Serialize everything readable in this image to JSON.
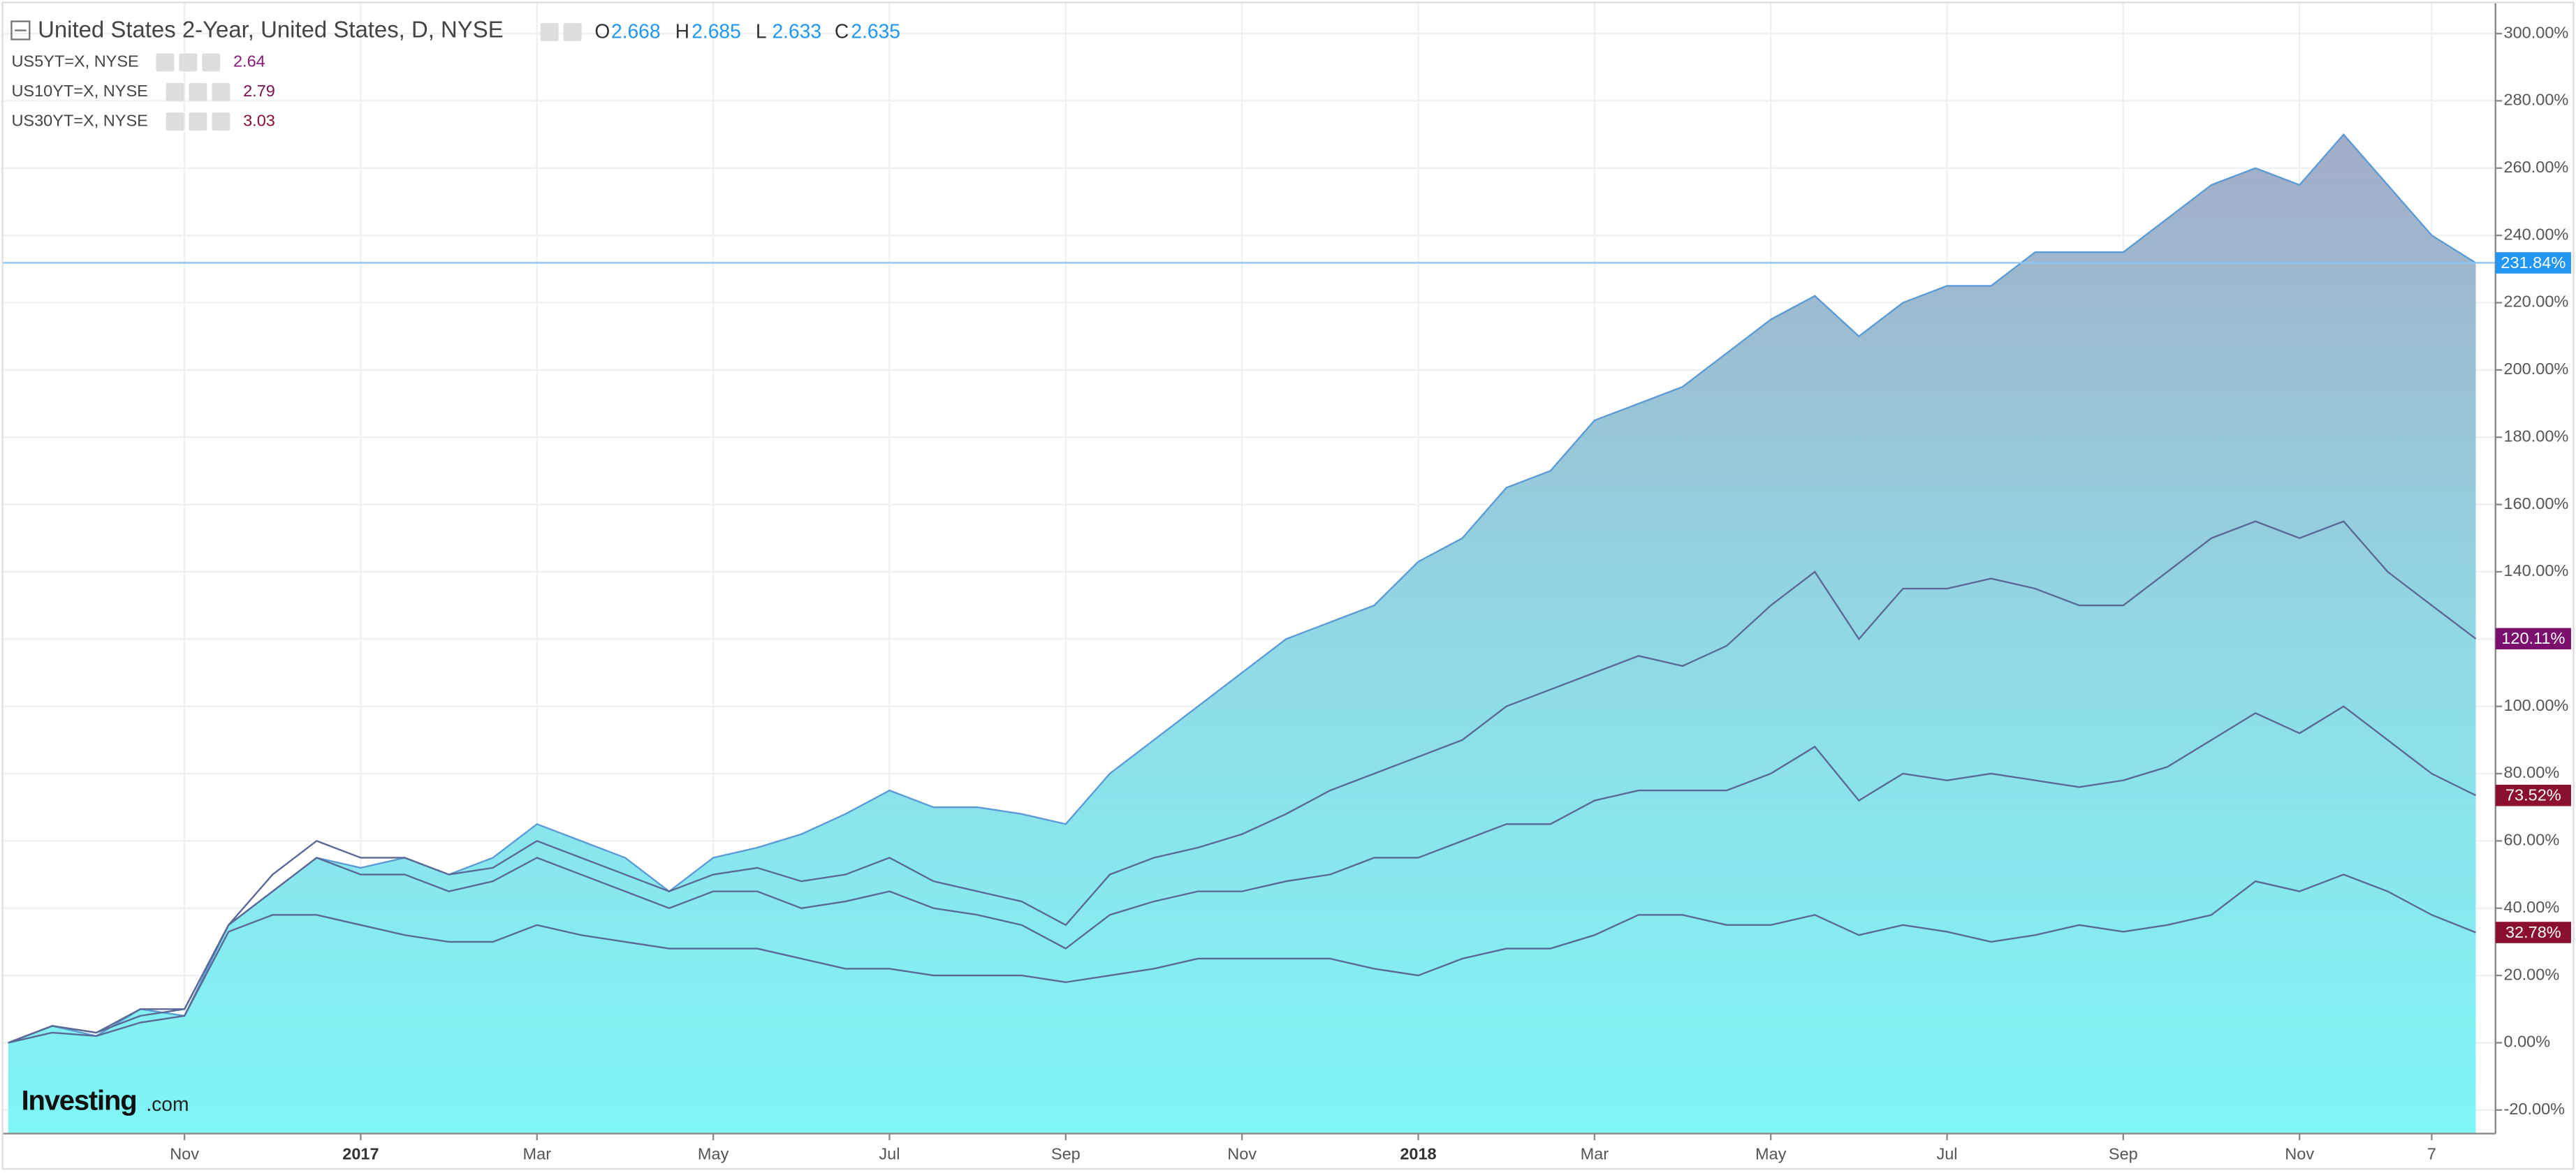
{
  "chart_data": {
    "type": "line",
    "title": "United States 2-Year, United States, D, NYSE",
    "ohlc": [
      {
        "label": "O",
        "value": 2.668
      },
      {
        "label": "H",
        "value": 2.685
      },
      {
        "label": "L",
        "value": 2.633
      },
      {
        "label": "C",
        "value": 2.635
      }
    ],
    "watermark": [
      "Investing",
      ".com"
    ],
    "categories": [
      null,
      null,
      null,
      null,
      "Nov",
      null,
      null,
      null,
      "2017",
      null,
      null,
      null,
      "Mar",
      null,
      null,
      null,
      "May",
      null,
      null,
      null,
      "Jul",
      null,
      null,
      null,
      "Sep",
      null,
      null,
      null,
      "Nov",
      null,
      null,
      null,
      "2018",
      null,
      null,
      null,
      "Mar",
      null,
      null,
      null,
      "May",
      null,
      null,
      null,
      "Jul",
      null,
      null,
      null,
      "Sep",
      null,
      null,
      null,
      "Nov",
      null,
      null,
      "7",
      null
    ],
    "ylim": [
      -27,
      309
    ],
    "yticks": [
      {
        "value": -20,
        "label": "-20.00%"
      },
      {
        "value": 0,
        "label": "0.00%"
      },
      {
        "value": 20,
        "label": "20.00%"
      },
      {
        "value": 40,
        "label": "40.00%"
      },
      {
        "value": 60,
        "label": "60.00%"
      },
      {
        "value": 80,
        "label": "80.00%"
      },
      {
        "value": 100,
        "label": "100.00%"
      },
      {
        "value": 120,
        "label": "120.00%"
      },
      {
        "value": 140,
        "label": "140.00%"
      },
      {
        "value": 160,
        "label": "160.00%"
      },
      {
        "value": 180,
        "label": "180.00%"
      },
      {
        "value": 200,
        "label": "200.00%"
      },
      {
        "value": 220,
        "label": "220.00%"
      },
      {
        "value": 240,
        "label": "240.00%"
      },
      {
        "value": 260,
        "label": "260.00%"
      },
      {
        "value": 280,
        "label": "280.00%"
      },
      {
        "value": 300,
        "label": "300.00%"
      }
    ],
    "grid": true,
    "series": [
      {
        "area": true,
        "color": "#5b9bd5",
        "last_label": {
          "value": 231.84,
          "label": "231.84%",
          "color": "#2196f3"
        },
        "values": [
          0,
          5,
          2,
          10,
          8,
          35,
          45,
          55,
          52,
          55,
          50,
          55,
          65,
          60,
          55,
          45,
          55,
          58,
          62,
          68,
          75,
          70,
          70,
          68,
          65,
          80,
          90,
          100,
          110,
          120,
          125,
          130,
          143,
          150,
          165,
          170,
          185,
          190,
          195,
          205,
          215,
          222,
          210,
          220,
          225,
          225,
          235,
          235,
          235,
          245,
          255,
          260,
          255,
          270,
          255,
          240,
          231.84
        ]
      },
      {
        "name": "US5YT=X, NYSE",
        "quote": 2.64,
        "quote_color": "#8b1a7a",
        "color": "#5a6896",
        "last_label": {
          "value": 120.11,
          "label": "120.11%",
          "color": "#7b0f6e"
        },
        "values": [
          0,
          5,
          3,
          10,
          10,
          35,
          50,
          60,
          55,
          55,
          50,
          52,
          60,
          55,
          50,
          45,
          50,
          52,
          48,
          50,
          55,
          48,
          45,
          42,
          35,
          50,
          55,
          58,
          62,
          68,
          75,
          80,
          85,
          90,
          100,
          105,
          110,
          115,
          112,
          118,
          130,
          140,
          120,
          135,
          135,
          138,
          135,
          130,
          130,
          140,
          150,
          155,
          150,
          155,
          140,
          130,
          120.11
        ]
      },
      {
        "name": "US10YT=X, NYSE",
        "quote": 2.79,
        "quote_color": "#7b1050",
        "color": "#5a6896",
        "last_label": {
          "value": 73.52,
          "label": "73.52%",
          "color": "#8b1030"
        },
        "values": [
          0,
          5,
          3,
          8,
          10,
          35,
          45,
          55,
          50,
          50,
          45,
          48,
          55,
          50,
          45,
          40,
          45,
          45,
          40,
          42,
          45,
          40,
          38,
          35,
          28,
          38,
          42,
          45,
          45,
          48,
          50,
          55,
          55,
          60,
          65,
          65,
          72,
          75,
          75,
          75,
          80,
          88,
          72,
          80,
          78,
          80,
          78,
          76,
          78,
          82,
          90,
          98,
          92,
          100,
          90,
          80,
          73.52
        ]
      },
      {
        "name": "US30YT=X, NYSE",
        "quote": 3.03,
        "quote_color": "#8b1030",
        "color": "#5a6896",
        "last_label": {
          "value": 32.78,
          "label": "32.78%",
          "color": "#8b1030"
        },
        "values": [
          0,
          3,
          2,
          6,
          8,
          33,
          38,
          38,
          35,
          32,
          30,
          30,
          35,
          32,
          30,
          28,
          28,
          28,
          25,
          22,
          22,
          20,
          20,
          20,
          18,
          20,
          22,
          25,
          25,
          25,
          25,
          22,
          20,
          25,
          28,
          28,
          32,
          38,
          38,
          35,
          35,
          38,
          32,
          35,
          33,
          30,
          32,
          35,
          33,
          35,
          38,
          48,
          45,
          50,
          45,
          38,
          32.78
        ]
      }
    ]
  }
}
